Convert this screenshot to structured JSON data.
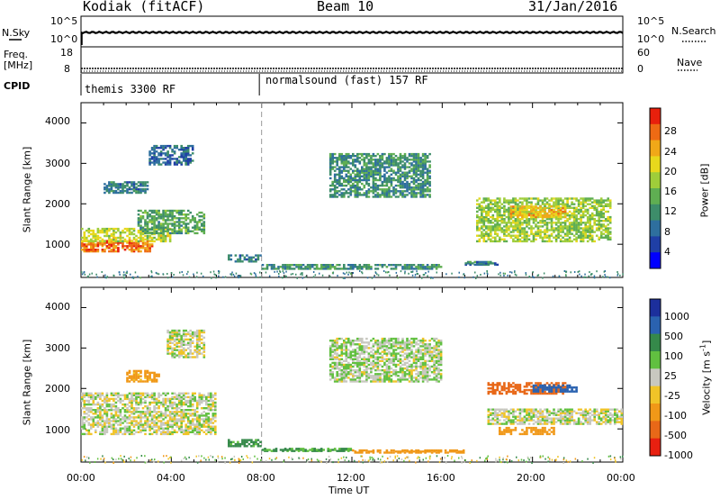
{
  "header": {
    "station": "Kodiak (fitACF)",
    "beam": "Beam 10",
    "date": "31/Jan/2016"
  },
  "status_panels": {
    "nsky_label": "N.Sky",
    "nsky_ticks": [
      "10^5",
      "10^0"
    ],
    "nsearch_label": "N.Search",
    "nsearch_ticks": [
      "10^5",
      "10^0"
    ],
    "freq_label": "Freq.",
    "freq_unit": "[MHz]",
    "freq_ticks": [
      "18",
      "8"
    ],
    "nave_label": "Nave",
    "nave_ticks": [
      "60",
      "0"
    ],
    "cpid_label": "CPID",
    "cpid_segments": [
      {
        "name": "themis 3300 RF",
        "start_hour": 0,
        "end_hour": 7.9
      },
      {
        "name": "normalsound (fast) 157 RF",
        "start_hour": 7.9,
        "end_hour": 24
      }
    ]
  },
  "x_axis": {
    "label": "Time UT",
    "ticks": [
      "00:00",
      "04:00",
      "08:00",
      "12:00",
      "16:00",
      "20:00",
      "00:00"
    ]
  },
  "power_panel": {
    "ylabel": "Slant Range [km]",
    "yticks": [
      "4000",
      "3000",
      "2000",
      "1000"
    ],
    "colorbar_label": "Power [dB]",
    "colorbar_ticks": [
      "28",
      "24",
      "20",
      "16",
      "12",
      "8",
      "4"
    ],
    "colors": [
      "#0000ff",
      "#1f3fa6",
      "#2e6f9e",
      "#3d8d6a",
      "#5fae52",
      "#9fcd3a",
      "#e8d81c",
      "#f0a818",
      "#ee6a14",
      "#e8200c"
    ]
  },
  "velocity_panel": {
    "ylabel": "Slant Range [km]",
    "yticks": [
      "4000",
      "3000",
      "2000",
      "1000"
    ],
    "colorbar_label": "Velocity [m s",
    "colorbar_sup": "-1",
    "colorbar_close": "]",
    "colorbar_ticks": [
      "1000",
      "500",
      "100",
      "25",
      "-25",
      "-100",
      "-500",
      "-1000"
    ],
    "colors": [
      "#1c2f9c",
      "#2a62b0",
      "#35894a",
      "#61c040",
      "#c8c8c0",
      "#f0c428",
      "#f09818",
      "#e86818",
      "#e82010"
    ]
  },
  "chart_data": [
    {
      "type": "heatmap",
      "name": "power",
      "x_range_hours": [
        0,
        24
      ],
      "y_range_km": [
        180,
        4500
      ],
      "value_unit": "dB",
      "regions": [
        {
          "t": [
            0.0,
            3.2
          ],
          "r": [
            850,
            1150
          ],
          "value": 26
        },
        {
          "t": [
            0.0,
            4.0
          ],
          "r": [
            1100,
            1450
          ],
          "value": 18
        },
        {
          "t": [
            2.5,
            5.5
          ],
          "r": [
            1300,
            1900
          ],
          "value": 12
        },
        {
          "t": [
            1.0,
            3.0
          ],
          "r": [
            2300,
            2600
          ],
          "value": 8
        },
        {
          "t": [
            3.0,
            5.0
          ],
          "r": [
            3000,
            3500
          ],
          "value": 6
        },
        {
          "t": [
            6.5,
            8.0
          ],
          "r": [
            600,
            800
          ],
          "value": 8
        },
        {
          "t": [
            8.0,
            16.0
          ],
          "r": [
            420,
            560
          ],
          "value": 10
        },
        {
          "t": [
            11.0,
            15.5
          ],
          "r": [
            2200,
            3300
          ],
          "value": 10
        },
        {
          "t": [
            17.5,
            23.5
          ],
          "r": [
            1100,
            2200
          ],
          "value": 16
        },
        {
          "t": [
            19.0,
            21.5
          ],
          "r": [
            1700,
            2000
          ],
          "value": 22
        },
        {
          "t": [
            17.0,
            18.5
          ],
          "r": [
            520,
            620
          ],
          "value": 8
        }
      ]
    },
    {
      "type": "heatmap",
      "name": "velocity",
      "x_range_hours": [
        0,
        24
      ],
      "y_range_km": [
        180,
        4500
      ],
      "value_unit": "m s-1",
      "regions": [
        {
          "t": [
            0.0,
            6.0
          ],
          "r": [
            900,
            1950
          ],
          "value": 0
        },
        {
          "t": [
            2.0,
            3.5
          ],
          "r": [
            2200,
            2500
          ],
          "value": -150
        },
        {
          "t": [
            3.8,
            5.5
          ],
          "r": [
            2800,
            3500
          ],
          "value": 0
        },
        {
          "t": [
            6.5,
            8.0
          ],
          "r": [
            600,
            800
          ],
          "value": 150
        },
        {
          "t": [
            8.0,
            12.0
          ],
          "r": [
            480,
            560
          ],
          "value": 120
        },
        {
          "t": [
            12.0,
            17.0
          ],
          "r": [
            440,
            520
          ],
          "value": -200
        },
        {
          "t": [
            11.0,
            16.0
          ],
          "r": [
            2200,
            3300
          ],
          "value": 20
        },
        {
          "t": [
            18.0,
            21.5
          ],
          "r": [
            1900,
            2200
          ],
          "value": -700
        },
        {
          "t": [
            20.0,
            22.0
          ],
          "r": [
            1950,
            2150
          ],
          "value": 600
        },
        {
          "t": [
            18.0,
            24.0
          ],
          "r": [
            1150,
            1550
          ],
          "value": 0
        },
        {
          "t": [
            18.5,
            21.0
          ],
          "r": [
            900,
            1100
          ],
          "value": -300
        }
      ]
    }
  ]
}
